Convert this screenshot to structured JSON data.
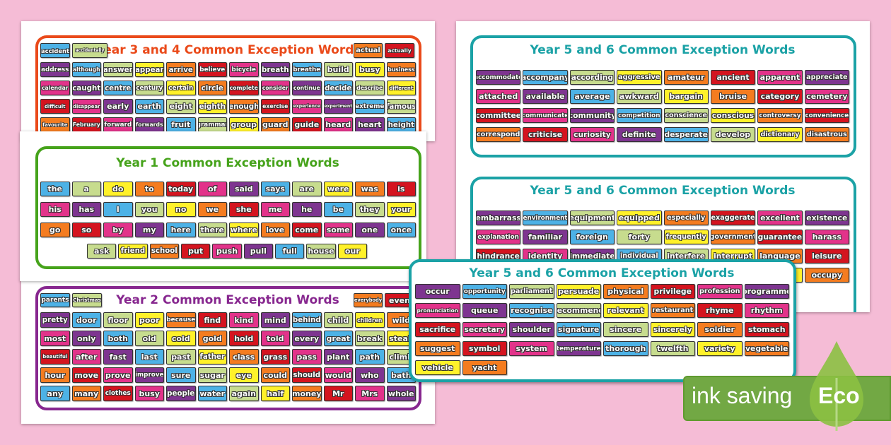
{
  "colors": {
    "P": "#7e3590",
    "B": "#4db2e6",
    "G": "#c7dc8e",
    "Y": "#fff12a",
    "O": "#f47c20",
    "R": "#d4141f",
    "K": "#e2338a",
    "Y34": "#ea4a1a",
    "Y1": "#46a31b",
    "Y2": "#87278f",
    "Y56": "#1ba2a6",
    "eco": "#72a844",
    "leaf": "#8cc043"
  },
  "year34": {
    "title": "Year 3 and 4 Common Exception Words",
    "header_left": [
      [
        "accident",
        "B"
      ],
      [
        "accidentally",
        "G"
      ]
    ],
    "header_right": [
      [
        "actual",
        "O"
      ],
      [
        "actually",
        "R"
      ]
    ],
    "words": [
      [
        "address",
        "P"
      ],
      [
        "although",
        "B"
      ],
      [
        "answer",
        "G"
      ],
      [
        "appear",
        "Y"
      ],
      [
        "arrive",
        "O"
      ],
      [
        "believe",
        "R"
      ],
      [
        "bicycle",
        "K"
      ],
      [
        "breath",
        "P"
      ],
      [
        "breathe",
        "B"
      ],
      [
        "build",
        "G"
      ],
      [
        "busy",
        "Y"
      ],
      [
        "business",
        "O"
      ],
      [
        "calendar",
        "K"
      ],
      [
        "caught",
        "P"
      ],
      [
        "centre",
        "B"
      ],
      [
        "century",
        "G"
      ],
      [
        "certain",
        "Y"
      ],
      [
        "circle",
        "O"
      ],
      [
        "complete",
        "R"
      ],
      [
        "consider",
        "K"
      ],
      [
        "continue",
        "P"
      ],
      [
        "decide",
        "B"
      ],
      [
        "describe",
        "G"
      ],
      [
        "different",
        "Y"
      ],
      [
        "difficult",
        "R"
      ],
      [
        "disappear",
        "K"
      ],
      [
        "early",
        "P"
      ],
      [
        "earth",
        "B"
      ],
      [
        "eight",
        "G"
      ],
      [
        "eighth",
        "Y"
      ],
      [
        "enough",
        "O"
      ],
      [
        "exercise",
        "R"
      ],
      [
        "experience",
        "K"
      ],
      [
        "experiment",
        "P"
      ],
      [
        "extreme",
        "B"
      ],
      [
        "famous",
        "G"
      ],
      [
        "favourite",
        "O"
      ],
      [
        "February",
        "R"
      ],
      [
        "forward",
        "K"
      ],
      [
        "forwards",
        "P"
      ],
      [
        "fruit",
        "B"
      ],
      [
        "grammar",
        "G"
      ],
      [
        "group",
        "Y"
      ],
      [
        "guard",
        "O"
      ],
      [
        "guide",
        "R"
      ],
      [
        "heard",
        "K"
      ],
      [
        "heart",
        "P"
      ],
      [
        "height",
        "B"
      ]
    ]
  },
  "year1": {
    "title": "Year 1 Common Exception Words",
    "words": [
      [
        "the",
        "B"
      ],
      [
        "a",
        "G"
      ],
      [
        "do",
        "Y"
      ],
      [
        "to",
        "O"
      ],
      [
        "today",
        "R"
      ],
      [
        "of",
        "K"
      ],
      [
        "said",
        "P"
      ],
      [
        "says",
        "B"
      ],
      [
        "are",
        "G"
      ],
      [
        "were",
        "Y"
      ],
      [
        "was",
        "O"
      ],
      [
        "is",
        "R"
      ],
      [
        "his",
        "K"
      ],
      [
        "has",
        "P"
      ],
      [
        "I",
        "B"
      ],
      [
        "you",
        "G"
      ],
      [
        "no",
        "Y"
      ],
      [
        "we",
        "O"
      ],
      [
        "she",
        "R"
      ],
      [
        "me",
        "K"
      ],
      [
        "he",
        "P"
      ],
      [
        "be",
        "B"
      ],
      [
        "they",
        "G"
      ],
      [
        "your",
        "Y"
      ],
      [
        "go",
        "O"
      ],
      [
        "so",
        "R"
      ],
      [
        "by",
        "K"
      ],
      [
        "my",
        "P"
      ],
      [
        "here",
        "B"
      ],
      [
        "there",
        "G"
      ],
      [
        "where",
        "Y"
      ],
      [
        "love",
        "O"
      ],
      [
        "come",
        "R"
      ],
      [
        "some",
        "K"
      ],
      [
        "one",
        "P"
      ],
      [
        "once",
        "B"
      ]
    ],
    "last_row": [
      [
        "ask",
        "G"
      ],
      [
        "friend",
        "Y"
      ],
      [
        "school",
        "O"
      ],
      [
        "put",
        "R"
      ],
      [
        "push",
        "K"
      ],
      [
        "pull",
        "P"
      ],
      [
        "full",
        "B"
      ],
      [
        "house",
        "G"
      ],
      [
        "our",
        "Y"
      ]
    ]
  },
  "year2": {
    "title": "Year 2 Common Exception Words",
    "header_left": [
      [
        "parents",
        "B"
      ],
      [
        "Christmas",
        "G"
      ]
    ],
    "header_right": [
      [
        "everybody",
        "O"
      ],
      [
        "even",
        "R"
      ]
    ],
    "words": [
      [
        "pretty",
        "P"
      ],
      [
        "door",
        "B"
      ],
      [
        "floor",
        "G"
      ],
      [
        "poor",
        "Y"
      ],
      [
        "because",
        "O"
      ],
      [
        "find",
        "R"
      ],
      [
        "kind",
        "K"
      ],
      [
        "mind",
        "P"
      ],
      [
        "behind",
        "B"
      ],
      [
        "child",
        "G"
      ],
      [
        "children",
        "Y"
      ],
      [
        "wild",
        "O"
      ],
      [
        "most",
        "K"
      ],
      [
        "only",
        "P"
      ],
      [
        "both",
        "B"
      ],
      [
        "old",
        "G"
      ],
      [
        "cold",
        "Y"
      ],
      [
        "gold",
        "O"
      ],
      [
        "hold",
        "R"
      ],
      [
        "told",
        "K"
      ],
      [
        "every",
        "P"
      ],
      [
        "great",
        "B"
      ],
      [
        "break",
        "G"
      ],
      [
        "steak",
        "Y"
      ],
      [
        "beautiful",
        "R"
      ],
      [
        "after",
        "K"
      ],
      [
        "fast",
        "P"
      ],
      [
        "last",
        "B"
      ],
      [
        "past",
        "G"
      ],
      [
        "father",
        "Y"
      ],
      [
        "class",
        "O"
      ],
      [
        "grass",
        "R"
      ],
      [
        "pass",
        "K"
      ],
      [
        "plant",
        "P"
      ],
      [
        "path",
        "B"
      ],
      [
        "climb",
        "G"
      ],
      [
        "hour",
        "O"
      ],
      [
        "move",
        "R"
      ],
      [
        "prove",
        "K"
      ],
      [
        "improve",
        "P"
      ],
      [
        "sure",
        "B"
      ],
      [
        "sugar",
        "G"
      ],
      [
        "eye",
        "Y"
      ],
      [
        "could",
        "O"
      ],
      [
        "should",
        "R"
      ],
      [
        "would",
        "K"
      ],
      [
        "who",
        "P"
      ],
      [
        "bath",
        "B"
      ],
      [
        "any",
        "B"
      ],
      [
        "many",
        "O"
      ],
      [
        "clothes",
        "R"
      ],
      [
        "busy",
        "K"
      ],
      [
        "people",
        "P"
      ],
      [
        "water",
        "B"
      ],
      [
        "again",
        "G"
      ],
      [
        "half",
        "Y"
      ],
      [
        "money",
        "O"
      ],
      [
        "Mr",
        "R"
      ],
      [
        "Mrs",
        "K"
      ],
      [
        "whole",
        "P"
      ]
    ]
  },
  "year56a": {
    "title": "Year 5 and 6 Common Exception Words",
    "words": [
      [
        "accommodate",
        "P"
      ],
      [
        "accompany",
        "B"
      ],
      [
        "according",
        "G"
      ],
      [
        "aggressive",
        "Y"
      ],
      [
        "amateur",
        "O"
      ],
      [
        "ancient",
        "R"
      ],
      [
        "apparent",
        "K"
      ],
      [
        "appreciate",
        "P"
      ],
      [
        "attached",
        "K"
      ],
      [
        "available",
        "P"
      ],
      [
        "average",
        "B"
      ],
      [
        "awkward",
        "G"
      ],
      [
        "bargain",
        "Y"
      ],
      [
        "bruise",
        "O"
      ],
      [
        "category",
        "R"
      ],
      [
        "cemetery",
        "K"
      ],
      [
        "committee",
        "R"
      ],
      [
        "communicate",
        "K"
      ],
      [
        "community",
        "P"
      ],
      [
        "competition",
        "B"
      ],
      [
        "conscience",
        "G"
      ],
      [
        "conscious",
        "Y"
      ],
      [
        "controversy",
        "O"
      ],
      [
        "convenience",
        "R"
      ],
      [
        "correspond",
        "O"
      ],
      [
        "criticise",
        "R"
      ],
      [
        "curiosity",
        "K"
      ],
      [
        "definite",
        "P"
      ],
      [
        "desperate",
        "B"
      ],
      [
        "develop",
        "G"
      ],
      [
        "dictionary",
        "Y"
      ],
      [
        "disastrous",
        "O"
      ]
    ]
  },
  "year56b": {
    "title": "Year 5 and 6 Common Exception Words",
    "words": [
      [
        "embarrass",
        "P"
      ],
      [
        "environment",
        "B"
      ],
      [
        "equipment",
        "G"
      ],
      [
        "equipped",
        "Y"
      ],
      [
        "especially",
        "O"
      ],
      [
        "exaggerate",
        "R"
      ],
      [
        "excellent",
        "K"
      ],
      [
        "existence",
        "P"
      ],
      [
        "explanation",
        "K"
      ],
      [
        "familiar",
        "P"
      ],
      [
        "foreign",
        "B"
      ],
      [
        "forty",
        "G"
      ],
      [
        "frequently",
        "Y"
      ],
      [
        "government",
        "O"
      ],
      [
        "guarantee",
        "R"
      ],
      [
        "harass",
        "K"
      ],
      [
        "hindrance",
        "R"
      ],
      [
        "identity",
        "K"
      ],
      [
        "immediate",
        "P"
      ],
      [
        "individual",
        "B"
      ],
      [
        "interfere",
        "G"
      ],
      [
        "interrupt",
        "Y"
      ],
      [
        "language",
        "O"
      ],
      [
        "leisure",
        "R"
      ],
      [
        "",
        "O"
      ],
      [
        "",
        "R"
      ],
      [
        "",
        "K"
      ],
      [
        "",
        "P"
      ],
      [
        "",
        "B"
      ],
      [
        "",
        "G"
      ],
      [
        "",
        "Y"
      ],
      [
        "occupy",
        "O"
      ]
    ]
  },
  "year56c": {
    "title": "Year 5 and 6 Common Exception Words",
    "words": [
      [
        "occur",
        "P"
      ],
      [
        "opportunity",
        "B"
      ],
      [
        "parliament",
        "G"
      ],
      [
        "persuade",
        "Y"
      ],
      [
        "physical",
        "O"
      ],
      [
        "privilege",
        "R"
      ],
      [
        "profession",
        "K"
      ],
      [
        "programme",
        "P"
      ],
      [
        "pronunciation",
        "K"
      ],
      [
        "queue",
        "P"
      ],
      [
        "recognise",
        "B"
      ],
      [
        "recommend",
        "G"
      ],
      [
        "relevant",
        "Y"
      ],
      [
        "restaurant",
        "O"
      ],
      [
        "rhyme",
        "R"
      ],
      [
        "rhythm",
        "K"
      ],
      [
        "sacrifice",
        "R"
      ],
      [
        "secretary",
        "K"
      ],
      [
        "shoulder",
        "P"
      ],
      [
        "signature",
        "B"
      ],
      [
        "sincere",
        "G"
      ],
      [
        "sincerely",
        "Y"
      ],
      [
        "soldier",
        "O"
      ],
      [
        "stomach",
        "R"
      ],
      [
        "suggest",
        "O"
      ],
      [
        "symbol",
        "R"
      ],
      [
        "system",
        "K"
      ],
      [
        "temperature",
        "P"
      ],
      [
        "thorough",
        "B"
      ],
      [
        "twelfth",
        "G"
      ],
      [
        "variety",
        "Y"
      ],
      [
        "vegetable",
        "O"
      ],
      [
        "vehicle",
        "Y"
      ],
      [
        "yacht",
        "O"
      ]
    ]
  },
  "badge": {
    "label": "ink saving",
    "eco": "Eco"
  }
}
